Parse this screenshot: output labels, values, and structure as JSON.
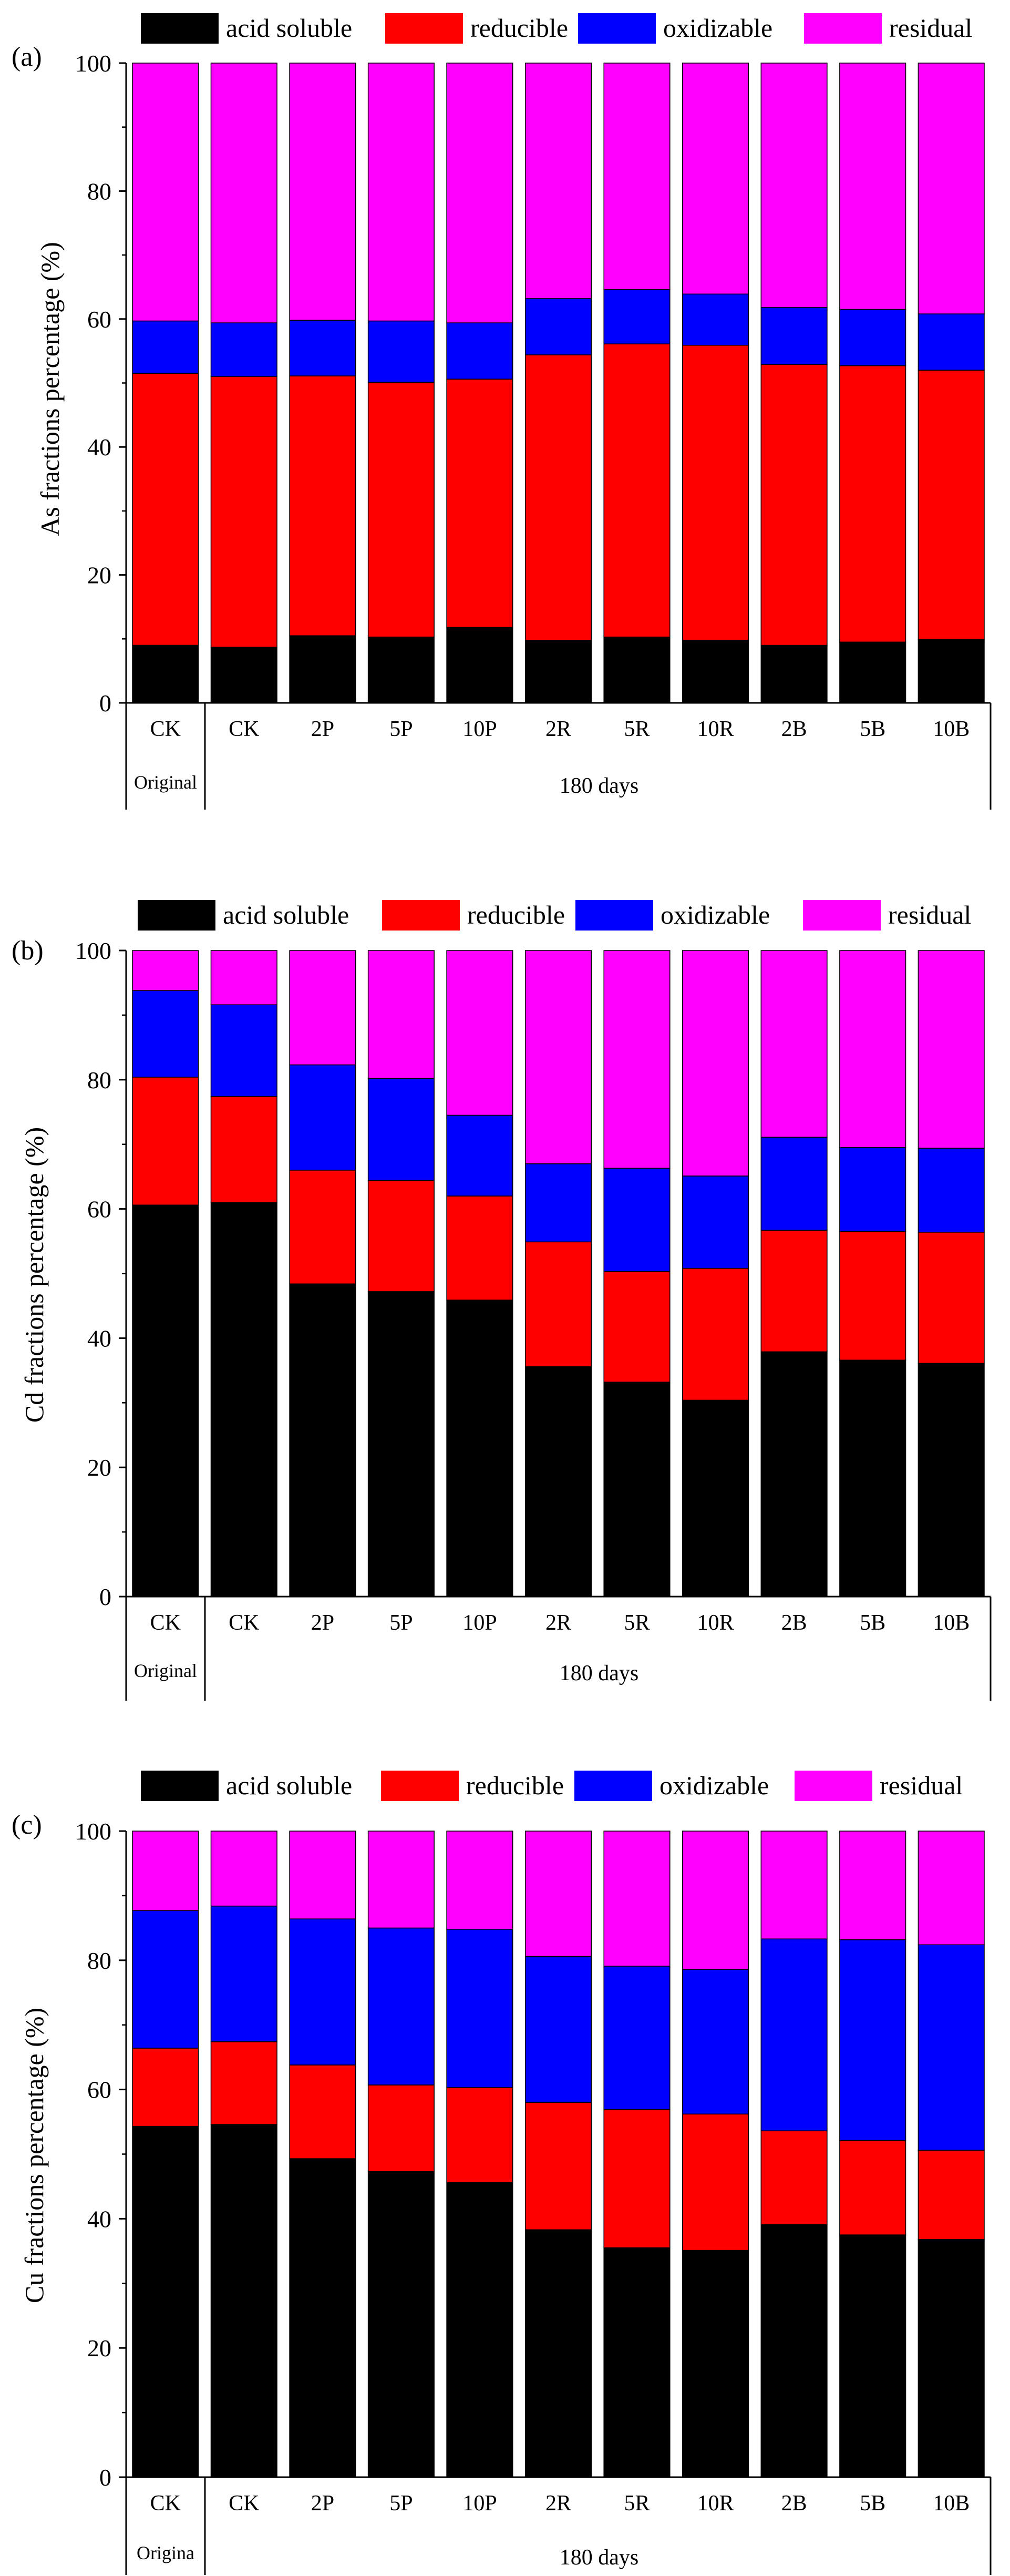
{
  "chart_data": [
    {
      "type": "bar",
      "stacked": true,
      "panel_label": "(a)",
      "title": "",
      "ylabel": "As fractions percentage (%)",
      "xlabel": "",
      "ylim": [
        0,
        100
      ],
      "yticks": [
        0,
        20,
        40,
        60,
        80,
        100
      ],
      "categories": [
        "CK",
        "CK",
        "2P",
        "5P",
        "10P",
        "2R",
        "5R",
        "10R",
        "2B",
        "5B",
        "10B"
      ],
      "groups": [
        {
          "label": "Original",
          "span": 1
        },
        {
          "label": "180 days",
          "span": 10
        }
      ],
      "legend_position": "top",
      "series": [
        {
          "name": "acid soluble",
          "color": "#000000",
          "values": [
            9.0,
            8.7,
            10.5,
            10.3,
            11.8,
            9.8,
            10.3,
            9.8,
            9.0,
            9.5,
            9.9
          ]
        },
        {
          "name": "reducible",
          "color": "#ff0000",
          "values": [
            42.5,
            42.3,
            40.6,
            39.8,
            38.8,
            44.6,
            45.8,
            46.1,
            43.9,
            43.2,
            42.1
          ]
        },
        {
          "name": "oxidizable",
          "color": "#0000ff",
          "values": [
            8.2,
            8.4,
            8.7,
            9.6,
            8.8,
            8.8,
            8.5,
            8.0,
            8.9,
            8.8,
            8.8
          ]
        },
        {
          "name": "residual",
          "color": "#ff00ff",
          "values": [
            40.3,
            40.6,
            40.2,
            40.3,
            40.6,
            36.8,
            35.4,
            36.1,
            38.2,
            38.5,
            39.2
          ]
        }
      ]
    },
    {
      "type": "bar",
      "stacked": true,
      "panel_label": "(b)",
      "title": "",
      "ylabel": "Cd fractions percentage (%)",
      "xlabel": "",
      "ylim": [
        0,
        100
      ],
      "yticks": [
        0,
        20,
        40,
        60,
        80,
        100
      ],
      "categories": [
        "CK",
        "CK",
        "2P",
        "5P",
        "10P",
        "2R",
        "5R",
        "10R",
        "2B",
        "5B",
        "10B"
      ],
      "groups": [
        {
          "label": "Original",
          "span": 1
        },
        {
          "label": "180 days",
          "span": 10
        }
      ],
      "legend_position": "top",
      "series": [
        {
          "name": "acid soluble",
          "color": "#000000",
          "values": [
            60.6,
            61.0,
            48.4,
            47.2,
            45.9,
            35.6,
            33.2,
            30.4,
            37.9,
            36.6,
            36.1
          ]
        },
        {
          "name": "reducible",
          "color": "#ff0000",
          "values": [
            19.8,
            16.4,
            17.6,
            17.2,
            16.1,
            19.3,
            17.1,
            20.4,
            18.8,
            19.9,
            20.3
          ]
        },
        {
          "name": "oxidizable",
          "color": "#0000ff",
          "values": [
            13.4,
            14.2,
            16.3,
            15.8,
            12.5,
            12.1,
            16.0,
            14.3,
            14.4,
            13.0,
            13.0
          ]
        },
        {
          "name": "residual",
          "color": "#ff00ff",
          "values": [
            6.2,
            8.4,
            17.7,
            19.8,
            25.5,
            33.0,
            33.7,
            34.9,
            28.9,
            30.5,
            30.6
          ]
        }
      ]
    },
    {
      "type": "bar",
      "stacked": true,
      "panel_label": "(c)",
      "title": "",
      "ylabel": "Cu fractions percentage (%)",
      "xlabel": "",
      "ylim": [
        0,
        100
      ],
      "yticks": [
        0,
        20,
        40,
        60,
        80,
        100
      ],
      "categories": [
        "CK",
        "CK",
        "2P",
        "5P",
        "10P",
        "2R",
        "5R",
        "10R",
        "2B",
        "5B",
        "10B"
      ],
      "groups": [
        {
          "label": "Origina",
          "span": 1
        },
        {
          "label": "180 days",
          "span": 10
        }
      ],
      "legend_position": "top",
      "series": [
        {
          "name": "acid soluble",
          "color": "#000000",
          "values": [
            54.3,
            54.6,
            49.3,
            47.3,
            45.6,
            38.3,
            35.5,
            35.1,
            39.1,
            37.5,
            36.8
          ]
        },
        {
          "name": "reducible",
          "color": "#ff0000",
          "values": [
            12.1,
            12.8,
            14.5,
            13.4,
            14.7,
            19.7,
            21.4,
            21.1,
            14.5,
            14.6,
            13.8
          ]
        },
        {
          "name": "oxidizable",
          "color": "#0000ff",
          "values": [
            21.3,
            21.0,
            22.6,
            24.3,
            24.5,
            22.6,
            22.2,
            22.4,
            29.7,
            31.1,
            31.8
          ]
        },
        {
          "name": "residual",
          "color": "#ff00ff",
          "values": [
            12.3,
            11.6,
            13.6,
            15.0,
            15.2,
            19.4,
            20.9,
            21.4,
            16.7,
            16.8,
            17.6
          ]
        }
      ]
    }
  ]
}
